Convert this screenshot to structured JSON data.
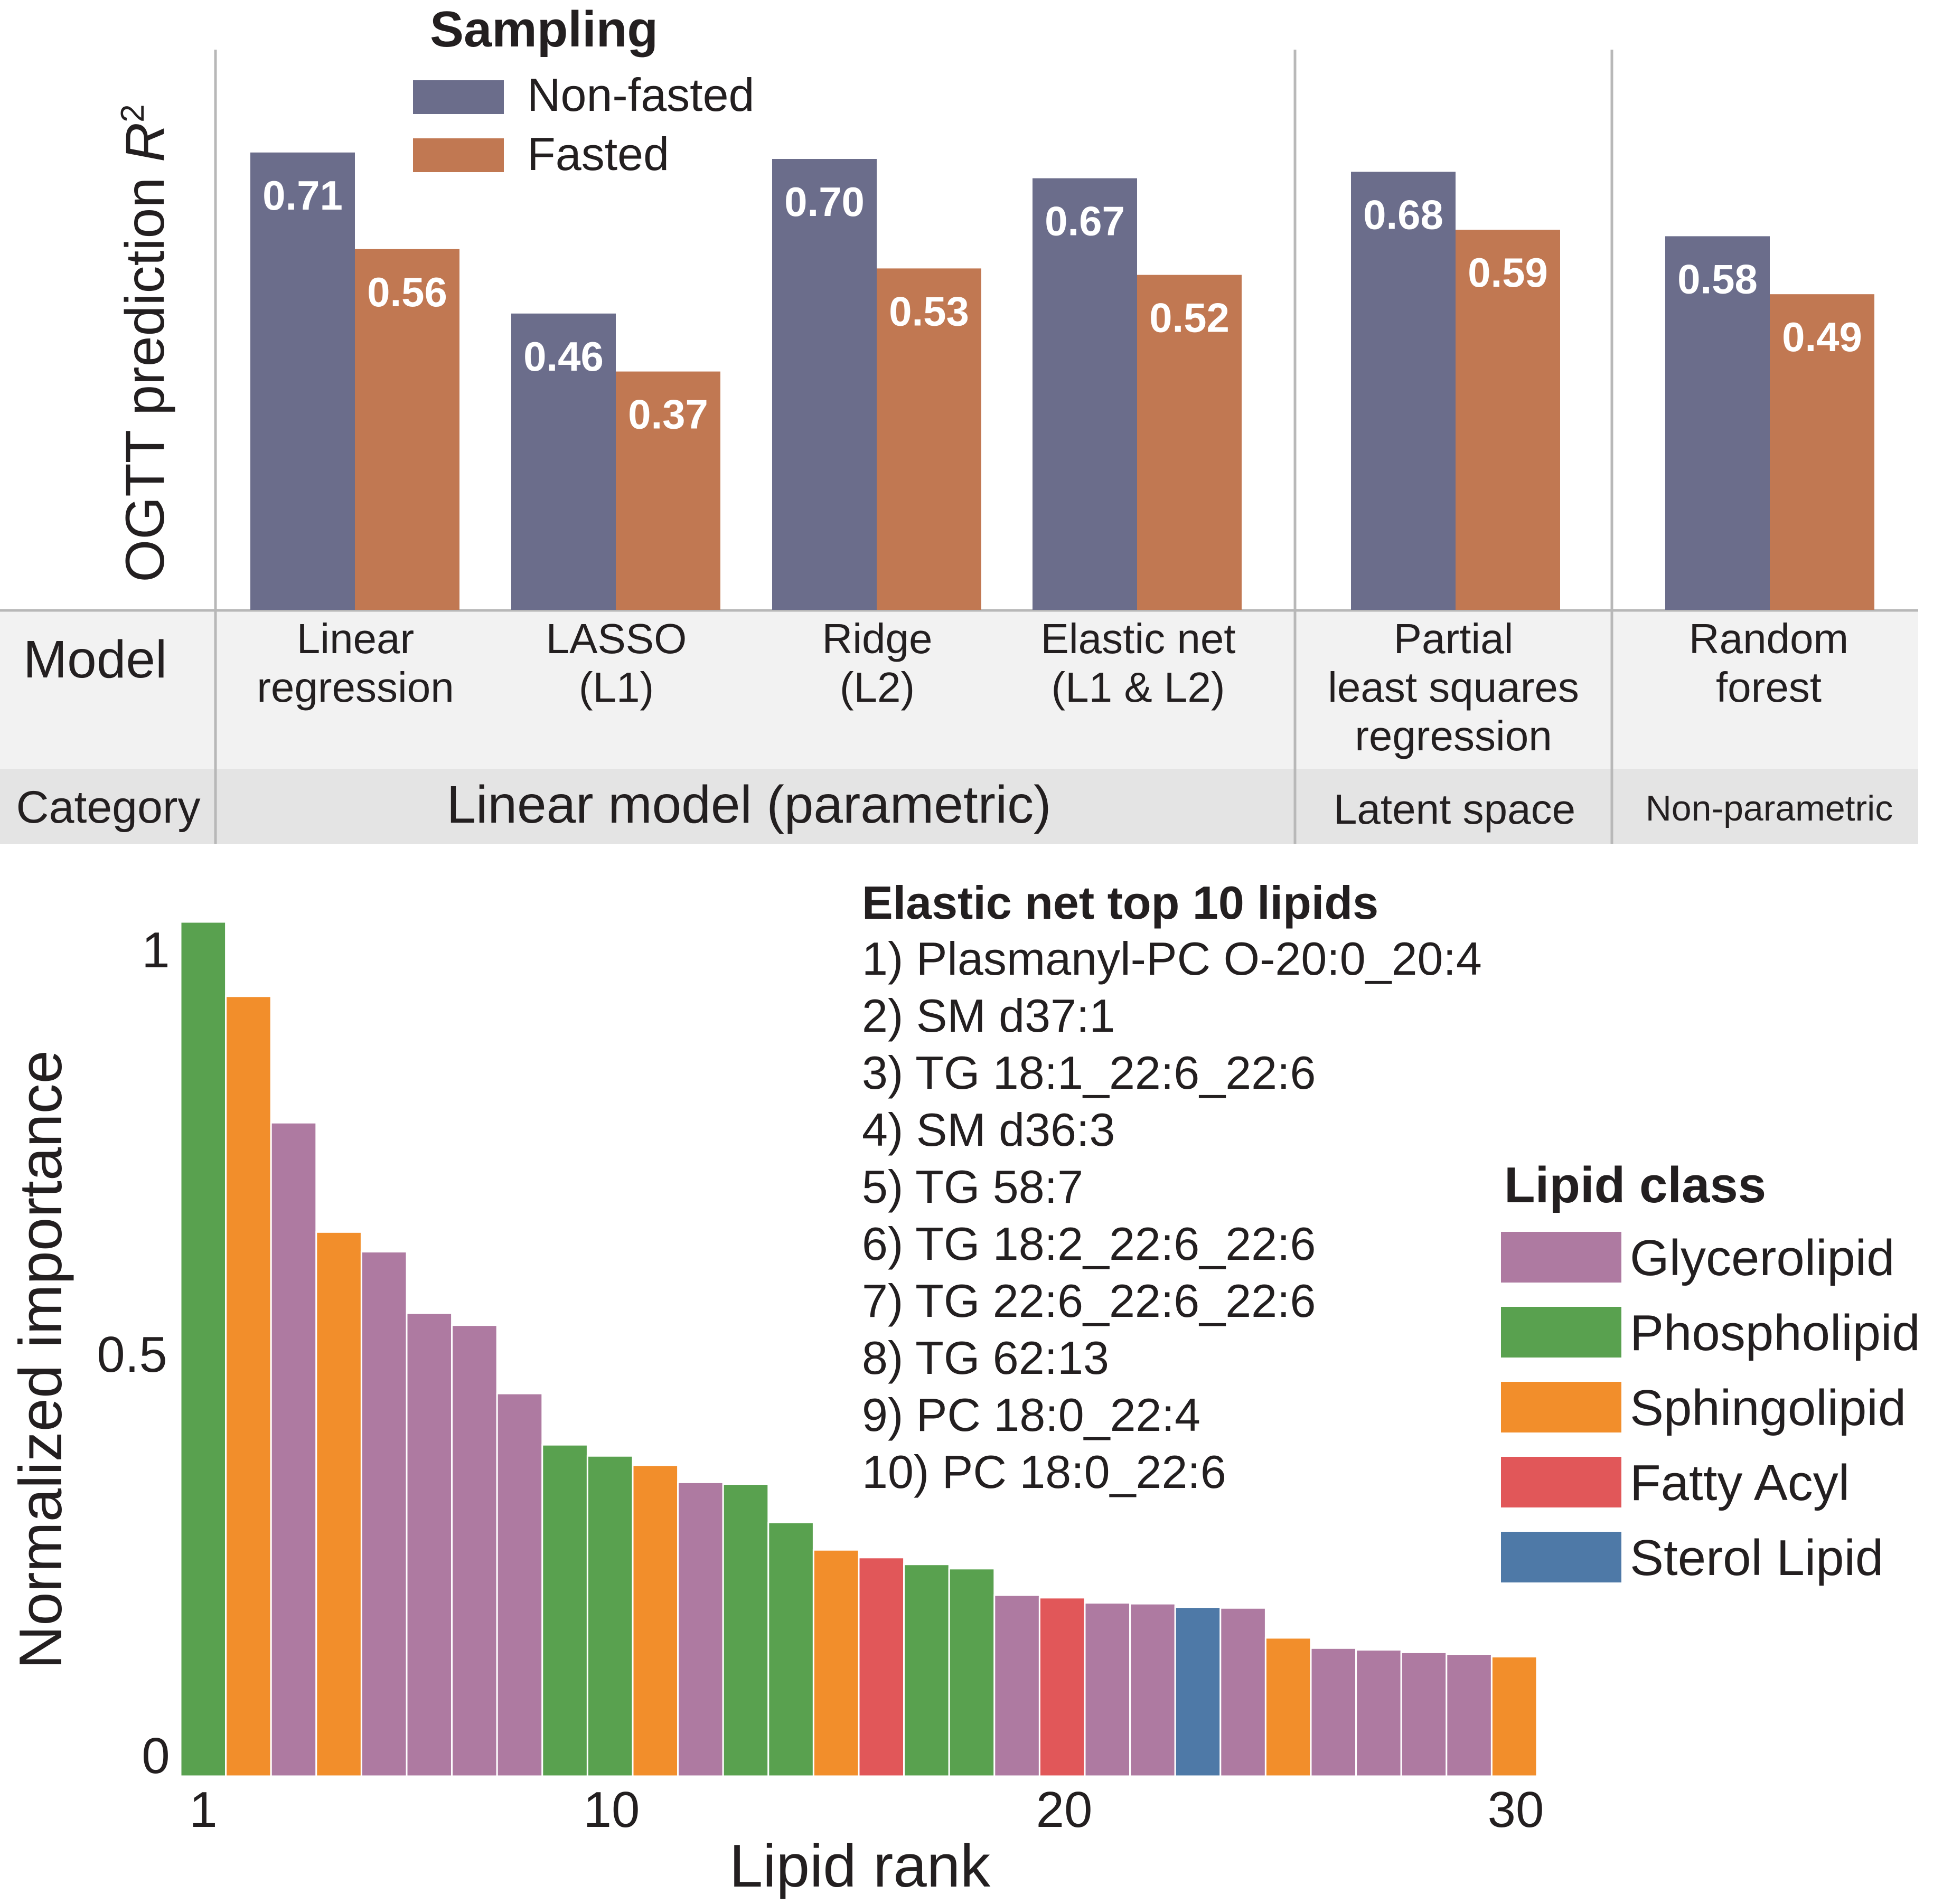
{
  "colors": {
    "non_fasted": "#6b6d8b",
    "fasted": "#c17852",
    "glycerolipid": "#ae7aa1",
    "phospholipid": "#59a14f",
    "sphingolipid": "#f28e2b",
    "fatty_acyl": "#e15759",
    "sterol_lipid": "#4e79a7",
    "table_model_bg": "#f2f2f2",
    "table_category_bg": "#e4e4e4",
    "divider": "#b8b8b8"
  },
  "chart_data": [
    {
      "type": "bar",
      "ylabel_prefix": "OGTT prediction ",
      "ylabel_italic": "R",
      "ylabel_sup": "2",
      "ylim": [
        0,
        0.9
      ],
      "legend": {
        "title": "Sampling",
        "placement": "top-left",
        "items": [
          {
            "label": "Non-fasted",
            "color_key": "non_fasted"
          },
          {
            "label": "Fasted",
            "color_key": "fasted"
          }
        ]
      },
      "categories": [
        "Linear regression",
        "LASSO (L1)",
        "Ridge (L2)",
        "Elastic net (L1 & L2)",
        "Partial least squares regression",
        "Random forest"
      ],
      "series": [
        {
          "name": "Non-fasted",
          "values": [
            0.71,
            0.46,
            0.7,
            0.67,
            0.68,
            0.58
          ],
          "labels": [
            "0.71",
            "0.46",
            "0.70",
            "0.67",
            "0.68",
            "0.58"
          ]
        },
        {
          "name": "Fasted",
          "values": [
            0.56,
            0.37,
            0.53,
            0.52,
            0.59,
            0.49
          ],
          "labels": [
            "0.56",
            "0.37",
            "0.53",
            "0.52",
            "0.59",
            "0.49"
          ]
        }
      ],
      "grid": false
    },
    {
      "type": "bar",
      "xlabel": "Lipid rank",
      "ylabel": "Normalized importance",
      "xticks": [
        "1",
        "10",
        "20",
        "30"
      ],
      "yticks": [
        "0",
        "0.5",
        "1"
      ],
      "ylim": [
        0,
        1
      ],
      "xlim": [
        1,
        30
      ],
      "grid": false,
      "x": [
        1,
        2,
        3,
        4,
        5,
        6,
        7,
        8,
        9,
        10,
        11,
        12,
        13,
        14,
        15,
        16,
        17,
        18,
        19,
        20,
        21,
        22,
        23,
        24,
        25,
        26,
        27,
        28,
        29,
        30
      ],
      "values": [
        1.0,
        0.913,
        0.765,
        0.637,
        0.614,
        0.542,
        0.528,
        0.448,
        0.388,
        0.375,
        0.364,
        0.344,
        0.342,
        0.297,
        0.265,
        0.256,
        0.248,
        0.243,
        0.212,
        0.209,
        0.203,
        0.202,
        0.198,
        0.197,
        0.162,
        0.15,
        0.148,
        0.145,
        0.143,
        0.14
      ],
      "classes": [
        "Phospholipid",
        "Sphingolipid",
        "Glycerolipid",
        "Sphingolipid",
        "Glycerolipid",
        "Glycerolipid",
        "Glycerolipid",
        "Glycerolipid",
        "Phospholipid",
        "Phospholipid",
        "Sphingolipid",
        "Glycerolipid",
        "Phospholipid",
        "Phospholipid",
        "Sphingolipid",
        "Fatty Acyl",
        "Phospholipid",
        "Phospholipid",
        "Glycerolipid",
        "Fatty Acyl",
        "Glycerolipid",
        "Glycerolipid",
        "Sterol Lipid",
        "Glycerolipid",
        "Sphingolipid",
        "Glycerolipid",
        "Glycerolipid",
        "Glycerolipid",
        "Glycerolipid",
        "Sphingolipid"
      ],
      "legend": {
        "title": "Lipid class",
        "placement": "right",
        "items": [
          {
            "label": "Glycerolipid",
            "color_key": "glycerolipid"
          },
          {
            "label": "Phospholipid",
            "color_key": "phospholipid"
          },
          {
            "label": "Sphingolipid",
            "color_key": "sphingolipid"
          },
          {
            "label": "Fatty Acyl",
            "color_key": "fatty_acyl"
          },
          {
            "label": "Sterol Lipid",
            "color_key": "sterol_lipid"
          }
        ]
      },
      "annotation": {
        "title": "Elastic net top 10 lipids",
        "items": [
          "1) Plasmanyl-PC O-20:0_20:4",
          "2) SM d37:1",
          "3) TG 18:1_22:6_22:6",
          "4) SM d36:3",
          "5) TG 58:7",
          "6) TG 18:2_22:6_22:6",
          "7) TG 22:6_22:6_22:6",
          "8) TG 62:13",
          "9) PC 18:0_22:4",
          "10) PC 18:0_22:6"
        ]
      }
    }
  ],
  "table": {
    "model_header": "Model",
    "category_header": "Category",
    "models": [
      [
        "Linear",
        "regression"
      ],
      [
        "LASSO",
        "(L1)"
      ],
      [
        "Ridge",
        "(L2)"
      ],
      [
        "Elastic net",
        "(L1 & L2)"
      ],
      [
        "Partial",
        "least squares",
        "regression"
      ],
      [
        "Random",
        "forest"
      ]
    ],
    "categories": [
      "Linear model (parametric)",
      "Latent space",
      "Non-parametric"
    ]
  }
}
